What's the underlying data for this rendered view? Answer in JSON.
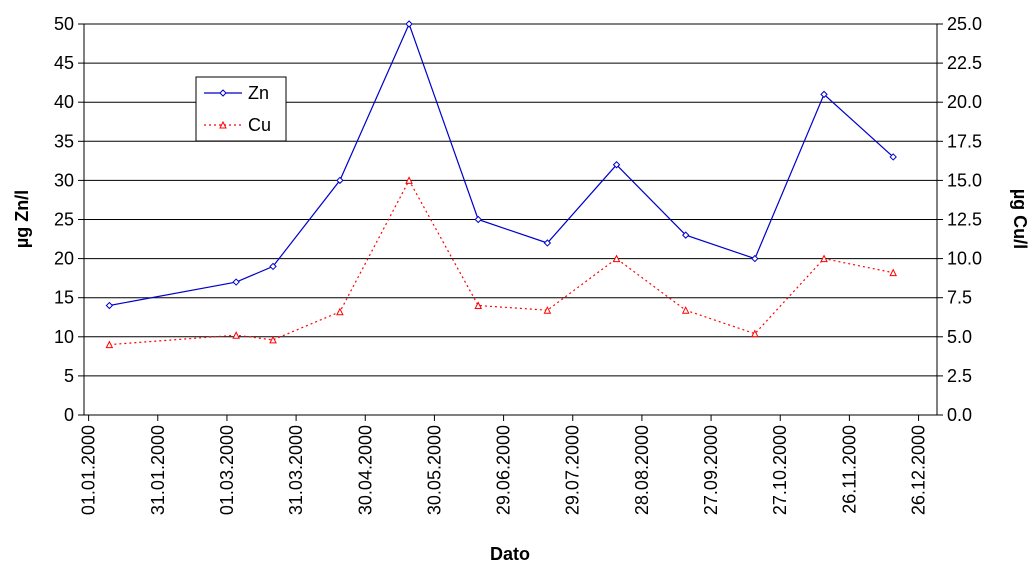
{
  "chart_data": {
    "type": "line",
    "title": "",
    "xlabel": "Dato",
    "ylabel_left": "µg Zn/l",
    "ylabel_right": "µg Cu/l",
    "x_tick_labels": [
      "01.01.2000",
      "31.01.2000",
      "01.03.2000",
      "31.03.2000",
      "30.04.2000",
      "30.05.2000",
      "29.06.2000",
      "29.07.2000",
      "28.08.2000",
      "27.09.2000",
      "27.10.2000",
      "26.11.2000",
      "26.12.2000"
    ],
    "x_range": [
      "30.12.1999",
      "03.01.2001"
    ],
    "y_left": {
      "range": [
        0,
        50
      ],
      "step": 5,
      "tick_labels": [
        "0",
        "5",
        "10",
        "15",
        "20",
        "25",
        "30",
        "35",
        "40",
        "45",
        "50"
      ]
    },
    "y_right": {
      "range": [
        0,
        25
      ],
      "step": 2.5,
      "tick_labels": [
        "0.0",
        "2.5",
        "5.0",
        "7.5",
        "10.0",
        "12.5",
        "15.0",
        "17.5",
        "20.0",
        "22.5",
        "25.0"
      ]
    },
    "grid": "horizontal",
    "legend_position": "top-left",
    "series": [
      {
        "name": "Zn",
        "axis": "left",
        "color": "#0000cc",
        "marker": "diamond",
        "line_style": "solid",
        "x": [
          "10.01.2000",
          "05.03.2000",
          "21.03.2000",
          "19.04.2000",
          "19.05.2000",
          "18.06.2000",
          "18.07.2000",
          "17.08.2000",
          "16.09.2000",
          "16.10.2000",
          "15.11.2000",
          "15.12.2000"
        ],
        "values": [
          14,
          17,
          19,
          30,
          50,
          25,
          22,
          32,
          23,
          20,
          41,
          33
        ]
      },
      {
        "name": "Cu",
        "axis": "right",
        "color": "#ff0000",
        "marker": "triangle",
        "line_style": "dotted",
        "x": [
          "10.01.2000",
          "05.03.2000",
          "21.03.2000",
          "19.04.2000",
          "19.05.2000",
          "18.06.2000",
          "18.07.2000",
          "17.08.2000",
          "16.09.2000",
          "16.10.2000",
          "15.11.2000",
          "15.12.2000"
        ],
        "values": [
          4.5,
          5.1,
          4.8,
          6.6,
          15.0,
          7.0,
          6.7,
          10.0,
          6.7,
          5.2,
          10.0,
          9.1
        ]
      }
    ]
  }
}
